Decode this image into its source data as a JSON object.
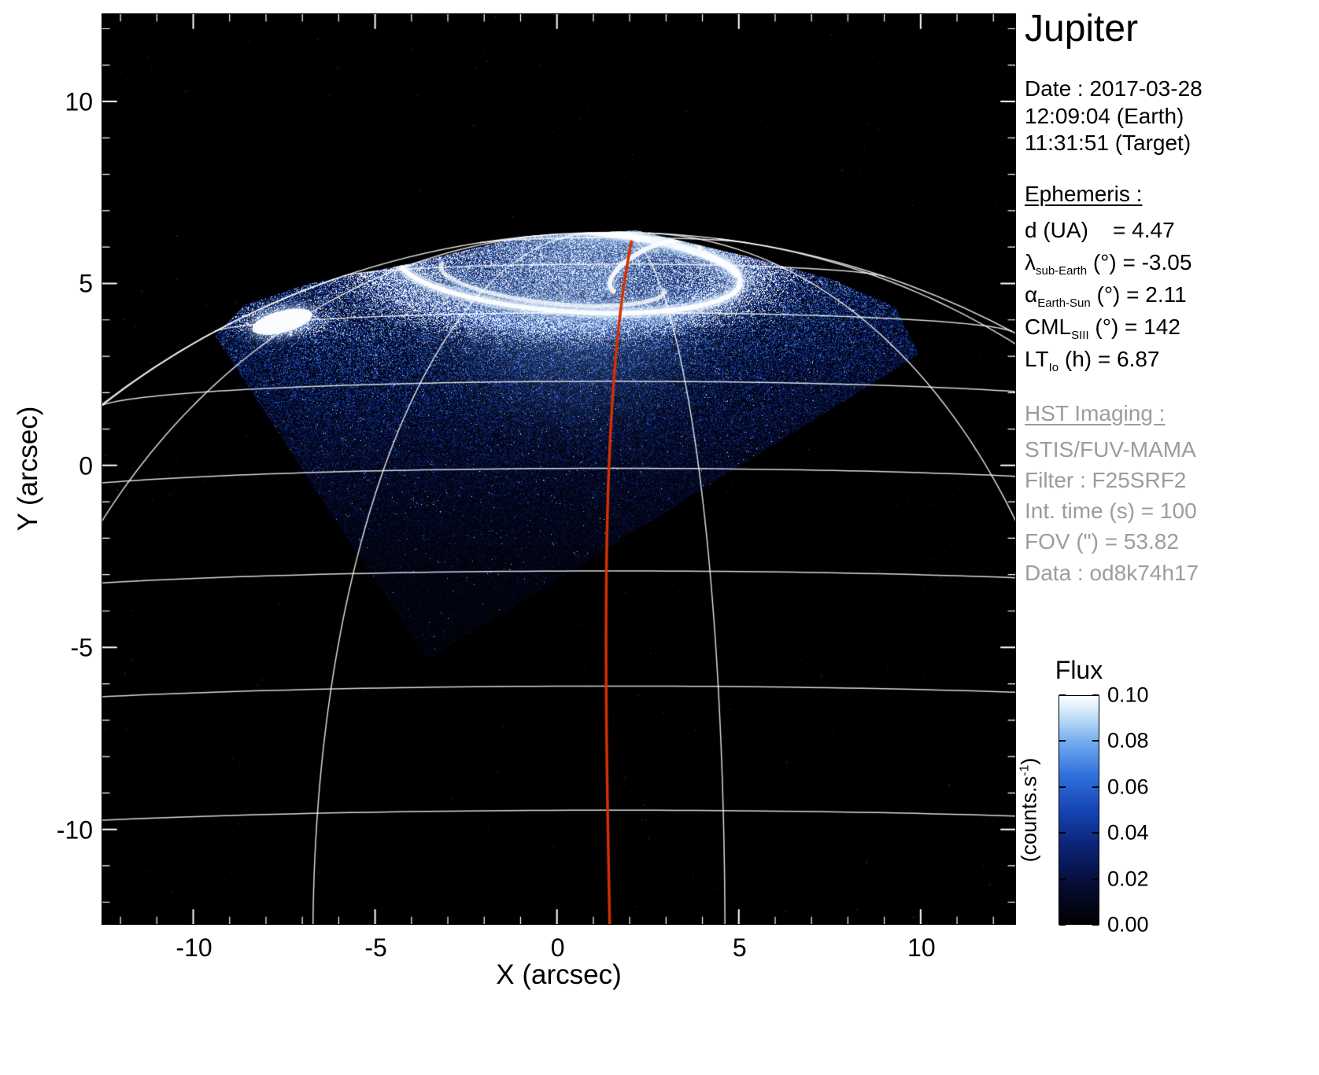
{
  "header": {
    "title": "Jupiter"
  },
  "datetime": {
    "date": "Date : 2017-03-28",
    "earth": "12:09:04 (Earth)",
    "target": "11:31:51 (Target)"
  },
  "ephemeris": {
    "heading": "Ephemeris :",
    "rows": [
      {
        "sym": "d (UA)",
        "sub": "",
        "rest": "    = 4.47"
      },
      {
        "sym": "λ",
        "sub": "sub-Earth",
        "rest": " (°) = -3.05"
      },
      {
        "sym": "α",
        "sub": "Earth-Sun",
        "rest": " (°) = 2.11"
      },
      {
        "sym": "CML",
        "sub": "SIII",
        "rest": " (°) = 142"
      },
      {
        "sym": "LT",
        "sub": "Io",
        "rest": " (h) = 6.87"
      }
    ]
  },
  "hst": {
    "heading": "HST Imaging :",
    "lines": [
      "STIS/FUV-MAMA",
      "Filter : F25SRF2",
      "Int. time (s) = 100",
      "FOV (\") = 53.82",
      "Data : od8k74h17"
    ]
  },
  "colorbar": {
    "title": "Flux",
    "unit_pre": "(counts.s",
    "unit_sup": "-1",
    "unit_post": ")",
    "tick_labels": [
      "0.10",
      "0.08",
      "0.06",
      "0.04",
      "0.02",
      "0.00"
    ],
    "range": [
      0.0,
      0.1
    ]
  },
  "chart_data": {
    "type": "heatmap",
    "title": "Jupiter",
    "xlabel": "X (arcsec)",
    "ylabel": "Y (arcsec)",
    "xlim": [
      -12.5,
      12.6
    ],
    "ylim": [
      -12.6,
      12.4
    ],
    "xticks": [
      -10,
      -5,
      0,
      5,
      10
    ],
    "yticks": [
      -10,
      -5,
      0,
      5,
      10
    ],
    "minor_tick_step_arcsec": 1,
    "background_color": "#000000",
    "grid_color": "#ffffff",
    "graticule": {
      "planet_center_arcsec": [
        1.55,
        -14.2
      ],
      "equatorial_radius_arcsec": 22.05,
      "polar_radius_arcsec": 20.6,
      "subearth_latitude_deg": -3.05,
      "cml_deg": 142,
      "latitude_step_deg": 10,
      "longitude_step_deg": 30
    },
    "cml_line": {
      "color": "#d43100",
      "points": [
        [
          2.05,
          6.15
        ],
        [
          1.2,
          2.0
        ],
        [
          1.3,
          -5.0
        ],
        [
          1.45,
          -12.6
        ]
      ]
    },
    "fov_polygon_arcsec": [
      [
        -3.55,
        -5.35
      ],
      [
        9.95,
        3.05
      ],
      [
        9.3,
        4.35
      ],
      [
        7.6,
        5.1
      ],
      [
        5.2,
        5.75
      ],
      [
        2.2,
        6.45
      ],
      [
        -0.9,
        6.3
      ],
      [
        -4.0,
        5.55
      ],
      [
        -6.8,
        5.0
      ],
      [
        -8.6,
        4.4
      ],
      [
        -9.4,
        3.55
      ]
    ],
    "aurora": {
      "main_oval": {
        "center": [
          0.35,
          5.35
        ],
        "rx": 4.7,
        "ry": 1.12,
        "rot_deg": -4
      },
      "inner_arc": {
        "center": [
          -0.1,
          5.15
        ],
        "rx": 3.1,
        "ry": 0.7,
        "rot_deg": -6
      },
      "swirl": {
        "center": [
          2.7,
          5.45
        ],
        "rx": 1.35,
        "ry": 0.55,
        "rot_deg": 25
      },
      "left_patch": {
        "center": [
          -7.55,
          3.95
        ],
        "rx": 0.85,
        "ry": 0.3,
        "rot_deg": 15
      },
      "glow_center": [
        0.6,
        5.4
      ],
      "glow_radius_arcsec": 5.6
    },
    "colormap_stops": [
      {
        "pos": 0.0,
        "color": "#000000"
      },
      {
        "pos": 0.18,
        "color": "#060d38"
      },
      {
        "pos": 0.35,
        "color": "#0c2478"
      },
      {
        "pos": 0.5,
        "color": "#1646b4"
      },
      {
        "pos": 0.65,
        "color": "#2f6fdd"
      },
      {
        "pos": 0.8,
        "color": "#74acee"
      },
      {
        "pos": 0.9,
        "color": "#bcdcf8"
      },
      {
        "pos": 1.0,
        "color": "#ffffff"
      }
    ]
  }
}
